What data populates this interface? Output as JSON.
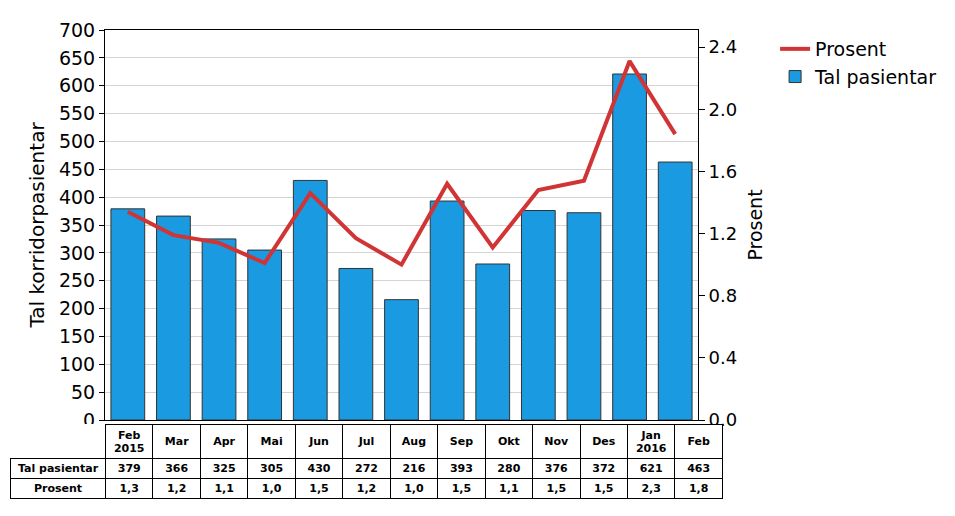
{
  "chart_data": {
    "type": "bar",
    "categories": [
      "Feb 2015",
      "Mar",
      "Apr",
      "Mai",
      "Jun",
      "Jul",
      "Aug",
      "Sep",
      "Okt",
      "Nov",
      "Des",
      "Jan 2016",
      "Feb"
    ],
    "series": [
      {
        "name": "Tal pasientar",
        "type": "bar",
        "color": "#1a9ae0",
        "values": [
          379,
          366,
          325,
          305,
          430,
          272,
          216,
          393,
          280,
          376,
          372,
          621,
          463
        ]
      },
      {
        "name": "Prosent",
        "type": "line",
        "color": "#d03434",
        "axis": "y2",
        "values": [
          1.34,
          1.19,
          1.14,
          1.01,
          1.46,
          1.17,
          1.0,
          1.52,
          1.11,
          1.48,
          1.54,
          2.31,
          1.84
        ],
        "value_labels": [
          "1,3",
          "1,2",
          "1,1",
          "1,0",
          "1,5",
          "1,2",
          "1,0",
          "1,5",
          "1,1",
          "1,5",
          "1,5",
          "2,3",
          "1,8"
        ]
      }
    ],
    "ylabel": "Tal korridorpasientar",
    "y2label": "Prosent",
    "ylim": [
      0,
      700
    ],
    "yticks": [
      0,
      50,
      100,
      150,
      200,
      250,
      300,
      350,
      400,
      450,
      500,
      550,
      600,
      650,
      700
    ],
    "y2lim": [
      0,
      2.51
    ],
    "y2ticks": [
      {
        "value": 0,
        "label": "0.0"
      },
      0.4,
      0.8,
      1.2,
      1.6,
      {
        "value": 2,
        "label": "2.0"
      },
      2.4
    ],
    "grid": true,
    "legend": "right"
  }
}
